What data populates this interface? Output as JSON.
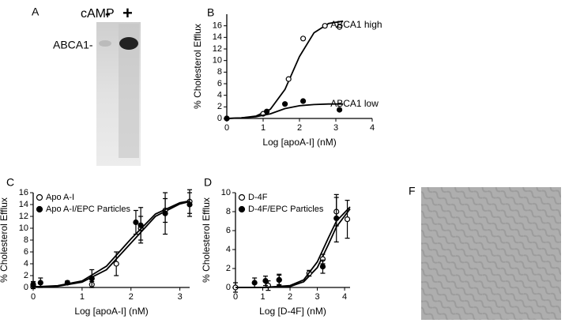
{
  "figure": {
    "panel_a": "A",
    "panel_f": "F",
    "treatment": "cAMP",
    "minus": "-",
    "plus": "+",
    "band": "ABCA1-"
  },
  "chart_data": [
    {
      "type": "scatter",
      "panel": "B",
      "xlabel": "Log [apoA-I] (nM)",
      "ylabel": "% Cholesterol  Efflux",
      "xlim": [
        0,
        4
      ],
      "xticks": [
        0,
        1,
        2,
        3,
        4
      ],
      "ylim": [
        0,
        18
      ],
      "yticks": [
        0,
        2,
        4,
        6,
        8,
        10,
        12,
        14,
        16
      ],
      "legend": "inline",
      "series": [
        {
          "name": "ABCA1 high",
          "marker": "open",
          "color": "#000000",
          "x": [
            0,
            1,
            1.7,
            2.1,
            2.7,
            3.1
          ],
          "values": [
            0,
            0.8,
            6.8,
            13.8,
            16,
            15.8
          ],
          "fit": {
            "x": [
              0,
              0.4,
              0.8,
              1.2,
              1.6,
              2.0,
              2.4,
              2.8,
              3.2
            ],
            "values": [
              0,
              0.1,
              0.4,
              1.6,
              5,
              10.7,
              14.8,
              16.4,
              16.8
            ]
          }
        },
        {
          "name": "ABCA1 low",
          "marker": "filled",
          "color": "#000000",
          "x": [
            0,
            1.1,
            1.6,
            2.1,
            3.1
          ],
          "values": [
            0,
            1.2,
            2.5,
            3,
            1.5
          ],
          "fit": {
            "x": [
              0,
              0.4,
              0.8,
              1.2,
              1.6,
              2.0,
              2.4,
              2.8,
              3.2
            ],
            "values": [
              0,
              0.1,
              0.3,
              0.8,
              1.7,
              2.2,
              2.4,
              2.5,
              2.5
            ]
          }
        }
      ]
    },
    {
      "type": "scatter",
      "panel": "C",
      "xlabel": "Log [apoA-I] (nM)",
      "ylabel": "% Cholesterol Efflux",
      "xlim": [
        0,
        3.2
      ],
      "xticks": [
        0,
        1,
        2,
        3
      ],
      "ylim": [
        0,
        16
      ],
      "yticks": [
        0,
        2,
        4,
        6,
        8,
        10,
        12,
        14,
        16
      ],
      "legend": "upper left",
      "series": [
        {
          "name": "Apo A-I",
          "marker": "open",
          "color": "#000000",
          "x": [
            0,
            1.2,
            1.7,
            2.2,
            2.7,
            3.2
          ],
          "values": [
            0.3,
            0.5,
            4,
            10,
            13,
            14.5
          ],
          "errors": [
            0.5,
            0.5,
            2,
            2,
            2,
            2
          ],
          "fit": {
            "x": [
              0,
              0.5,
              1.0,
              1.5,
              2.0,
              2.5,
              3.0,
              3.2
            ],
            "values": [
              0.1,
              0.2,
              0.9,
              3,
              7.5,
              12,
              14.1,
              14.5
            ]
          }
        },
        {
          "name": "Apo A-I/EPC Particles",
          "marker": "filled",
          "color": "#000000",
          "x": [
            0,
            0.15,
            0.7,
            1.2,
            2.1,
            2.2,
            2.7,
            3.2
          ],
          "values": [
            0.5,
            0.8,
            0.8,
            1.5,
            11,
            10.5,
            12.5,
            14
          ],
          "errors": [
            0.5,
            0.8,
            0.3,
            1.5,
            2,
            3,
            3.5,
            2
          ],
          "fit": {
            "x": [
              0,
              0.5,
              1.0,
              1.5,
              2.0,
              2.5,
              3.0,
              3.2
            ],
            "values": [
              0.1,
              0.3,
              1.1,
              3.6,
              8.2,
              12.4,
              14.3,
              14.6
            ]
          }
        }
      ]
    },
    {
      "type": "scatter",
      "panel": "D",
      "xlabel": "Log [D-4F] (nM)",
      "ylabel": "% Cholesterol Efflux",
      "xlim": [
        0,
        4.2
      ],
      "xticks": [
        0,
        1,
        2,
        3,
        4
      ],
      "ylim": [
        0,
        10
      ],
      "yticks": [
        0,
        2,
        4,
        6,
        8,
        10
      ],
      "legend": "upper left",
      "series": [
        {
          "name": "D-4F",
          "marker": "open",
          "color": "#000000",
          "x": [
            0,
            1.2,
            1.6,
            2.7,
            3.2,
            3.7,
            4.1
          ],
          "values": [
            0,
            0.2,
            0.8,
            1.5,
            3,
            8,
            7.2
          ],
          "errors": [
            0.5,
            0.5,
            0.5,
            0.3,
            0.5,
            1.5,
            2
          ],
          "fit": {
            "x": [
              0,
              1,
              2,
              2.5,
              3,
              3.4,
              3.7,
              4.2
            ],
            "values": [
              0,
              0,
              0.1,
              0.6,
              2.1,
              4.5,
              6.4,
              8.3
            ]
          }
        },
        {
          "name": "D-4F/EPC Particles",
          "marker": "filled",
          "color": "#000000",
          "x": [
            0.7,
            1.1,
            1.6,
            3.2,
            3.7
          ],
          "values": [
            0.5,
            0.7,
            0.8,
            2.2,
            7.3
          ],
          "errors": [
            0.5,
            0.5,
            0.6,
            0.7,
            2.5
          ],
          "fit": {
            "x": [
              0,
              1,
              2,
              2.5,
              3,
              3.4,
              3.7,
              4.2
            ],
            "values": [
              0,
              0,
              0.2,
              0.8,
              2.7,
              5.2,
              7,
              8.5
            ]
          }
        }
      ]
    }
  ]
}
